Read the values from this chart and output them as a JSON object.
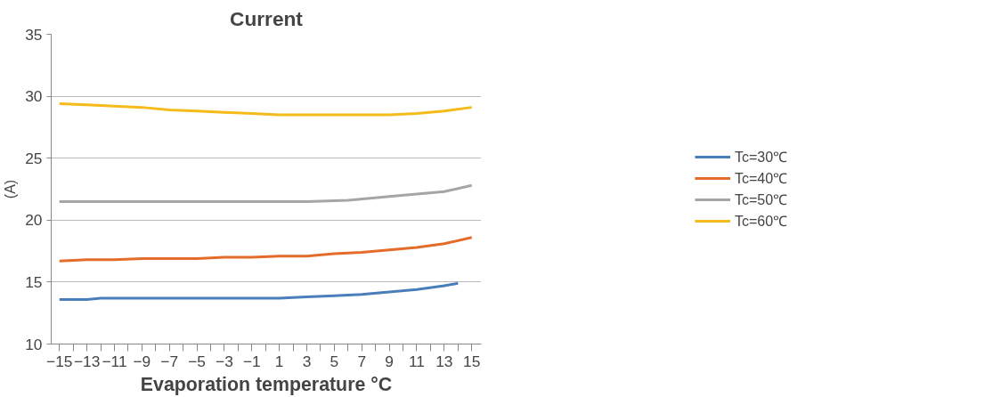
{
  "chart_data": {
    "type": "line",
    "title": "Current",
    "xlabel": "Evaporation temperature °C",
    "ylabel": "(A)",
    "xlim": [
      -15.6,
      15.7
    ],
    "ylim": [
      10,
      35
    ],
    "xticks": [
      -15,
      {
        "value": -14,
        "label": null
      },
      -13,
      {
        "value": -12,
        "label": null
      },
      -11,
      {
        "value": -10,
        "label": null
      },
      -9,
      {
        "value": -8,
        "label": null
      },
      -7,
      {
        "value": -6,
        "label": null
      },
      -5,
      {
        "value": -4,
        "label": null
      },
      -3,
      {
        "value": -2,
        "label": null
      },
      -1,
      {
        "value": 0,
        "label": null
      },
      1,
      {
        "value": 2,
        "label": null
      },
      3,
      {
        "value": 4,
        "label": null
      },
      5,
      {
        "value": 6,
        "label": null
      },
      7,
      {
        "value": 8,
        "label": null
      },
      9,
      {
        "value": 10,
        "label": null
      },
      11,
      {
        "value": 12,
        "label": null
      },
      13,
      {
        "value": 14,
        "label": null
      },
      15
    ],
    "yticks": [
      10,
      15,
      20,
      25,
      30,
      35
    ],
    "grid": "y",
    "legend": "right",
    "marker": "none",
    "line_style": "solid",
    "series": [
      {
        "name": "Tc=30℃",
        "color": "#4a7ebb",
        "x": [
          -15,
          -13,
          -12,
          -9,
          -5,
          -1,
          1,
          3,
          5,
          7,
          9,
          11,
          13,
          14
        ],
        "values": [
          13.6,
          13.6,
          13.7,
          13.7,
          13.7,
          13.7,
          13.7,
          13.8,
          13.9,
          14.0,
          14.2,
          14.4,
          14.7,
          14.9
        ]
      },
      {
        "name": "Tc=40℃",
        "color": "#e46c2a",
        "x": [
          -15,
          -13,
          -11,
          -9,
          -7,
          -5,
          -3,
          -1,
          1,
          3,
          5,
          7,
          9,
          11,
          13,
          15
        ],
        "values": [
          16.7,
          16.8,
          16.8,
          16.9,
          16.9,
          16.9,
          17.0,
          17.0,
          17.1,
          17.1,
          17.3,
          17.4,
          17.6,
          17.8,
          18.1,
          18.6
        ]
      },
      {
        "name": "Tc=50℃",
        "color": "#a5a5a5",
        "x": [
          -15,
          -9,
          -3,
          3,
          6,
          9,
          11,
          13,
          15
        ],
        "values": [
          21.5,
          21.5,
          21.5,
          21.5,
          21.6,
          21.9,
          22.1,
          22.3,
          22.8
        ]
      },
      {
        "name": "Tc=60℃",
        "color": "#f5bb1a",
        "x": [
          -15,
          -13,
          -11,
          -9,
          -7,
          -5,
          -3,
          -1,
          1,
          3,
          5,
          7,
          9,
          11,
          13,
          15
        ],
        "values": [
          29.4,
          29.3,
          29.2,
          29.1,
          28.9,
          28.8,
          28.7,
          28.6,
          28.5,
          28.5,
          28.5,
          28.5,
          28.5,
          28.6,
          28.8,
          29.1
        ]
      }
    ]
  }
}
